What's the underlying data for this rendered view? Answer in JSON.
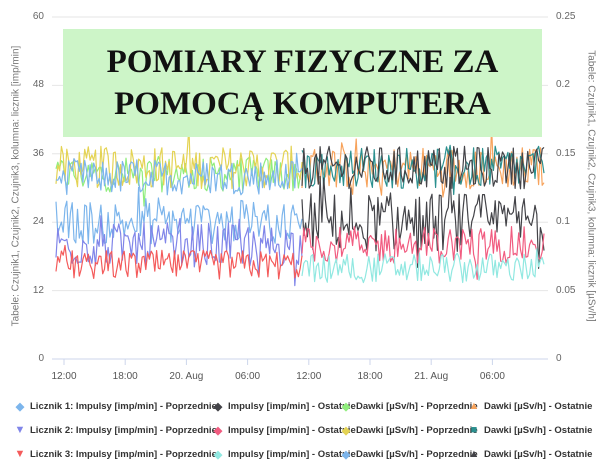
{
  "chart_data": {
    "type": "line",
    "title": "POMIARY FIZYCZNE ZA\nPOMOCĄ KOMPUTERA",
    "left_axis": {
      "label": "Tabele: Czujnik1, Czujnik2, Czujnik3, kolumna: licznik [imp/min]",
      "ticks": [
        "0",
        "12",
        "24",
        "36",
        "48",
        "60"
      ],
      "range": [
        0,
        60
      ]
    },
    "right_axis": {
      "label": "Tabele: Czujnik1, Czujnik2, Czujnik3, kolumna: licznik [µSv/h]",
      "ticks": [
        "0",
        "0.05",
        "0.1",
        "0.15",
        "0.2",
        "0.25"
      ],
      "range": [
        0,
        0.25
      ]
    },
    "x_axis": {
      "ticks": [
        "12:00",
        "18:00",
        "20. Aug",
        "06:00",
        "12:00",
        "18:00",
        "21. Aug",
        "06:00"
      ]
    },
    "series": [
      {
        "name": "Licznik 1: Impulsy [imp/min] - Poprzednie",
        "color": "#7cb5ec",
        "axis": "left",
        "segment": "previous",
        "level": 24,
        "amp": 3
      },
      {
        "name": "Impulsy [imp/min] - Ostatnie",
        "color": "#434348",
        "axis": "left",
        "segment": "latest",
        "level": 24,
        "amp": 4
      },
      {
        "name": "Dawki [µSv/h] - Poprzednie",
        "color": "#90ed7d",
        "axis": "right",
        "segment": "previous",
        "level": 0.135,
        "amp": 0.01
      },
      {
        "name": "Dawki [µSv/h] - Ostatnie",
        "color": "#f7a35c",
        "axis": "right",
        "segment": "latest",
        "level": 0.14,
        "amp": 0.012
      },
      {
        "name": "Licznik 2: Impulsy [imp/min] - Poprzednie",
        "color": "#8085e9",
        "axis": "left",
        "segment": "previous",
        "level": 20,
        "amp": 3
      },
      {
        "name": "Impulsy [imp/min] - Ostatnie",
        "color": "#f15c80",
        "axis": "left",
        "segment": "latest",
        "level": 20,
        "amp": 2.5
      },
      {
        "name": "Dawki [µSv/h] - Poprzednie",
        "color": "#e4d354",
        "axis": "right",
        "segment": "previous",
        "level": 0.14,
        "amp": 0.012
      },
      {
        "name": "Dawki [µSv/h] - Ostatnie",
        "color": "#2b908f",
        "axis": "right",
        "segment": "latest",
        "level": 0.14,
        "amp": 0.012
      },
      {
        "name": "Licznik 3: Impulsy [imp/min] - Poprzednie",
        "color": "#f45b5b",
        "axis": "left",
        "segment": "previous",
        "level": 16.5,
        "amp": 2
      },
      {
        "name": "Impulsy [imp/min] - Ostatnie",
        "color": "#91e8e1",
        "axis": "left",
        "segment": "latest",
        "level": 16,
        "amp": 2
      },
      {
        "name": "Dawki [µSv/h] - Poprzednie",
        "color": "#7cb5ec",
        "axis": "right",
        "segment": "previous",
        "level": 0.133,
        "amp": 0.01
      },
      {
        "name": "Dawki [µSv/h] - Ostatnie",
        "color": "#434348",
        "axis": "right",
        "segment": "latest",
        "level": 0.14,
        "amp": 0.012
      }
    ],
    "grid": true,
    "legend_position": "bottom"
  },
  "legend": {
    "markers": [
      "diamond",
      "diamond",
      "diamond",
      "triangle-up",
      "triangle-down",
      "diamond",
      "diamond",
      "square",
      "triangle-down",
      "diamond",
      "diamond",
      "triangle-up"
    ]
  }
}
